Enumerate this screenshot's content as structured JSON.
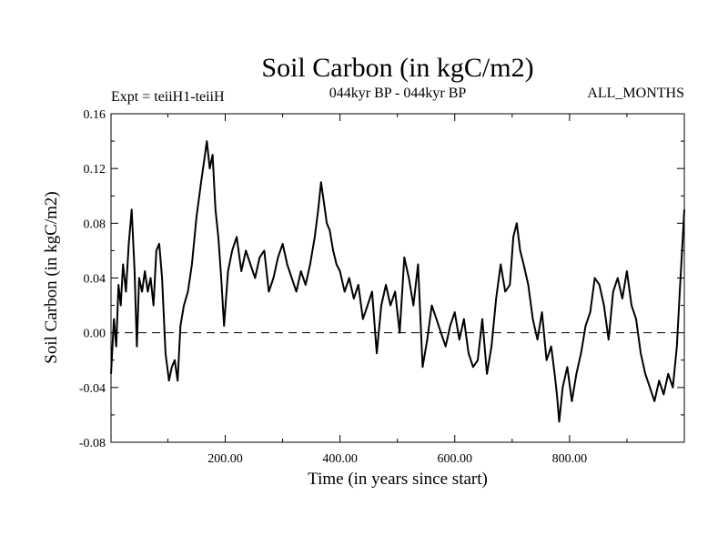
{
  "chart_data": {
    "type": "line",
    "title": "Soil Carbon (in kgC/m2)",
    "subtitle_left": "Expt = teiiH1-teiiH",
    "subtitle_center": "044kyr BP - 044kyr BP",
    "subtitle_right": "ALL_MONTHS",
    "xlabel": "Time (in years since start)",
    "ylabel": "Soil Carbon (in kgC/m2)",
    "xlim": [
      1,
      1000
    ],
    "ylim": [
      -0.08,
      0.16
    ],
    "x_ticks": [
      200,
      400,
      600,
      800
    ],
    "x_tick_labels": [
      "200.00",
      "400.00",
      "600.00",
      "800.00"
    ],
    "y_ticks": [
      -0.08,
      -0.04,
      0.0,
      0.04,
      0.08,
      0.12,
      0.16
    ],
    "y_tick_labels": [
      "-0.08",
      "-0.04",
      "0.00",
      "0.04",
      "0.08",
      "0.12",
      "0.16"
    ],
    "reference_line": {
      "y": 0.0,
      "style": "dashed"
    },
    "grid": false,
    "series": [
      {
        "x": [
          1,
          6,
          10,
          14,
          18,
          22,
          27,
          32,
          37,
          42,
          46,
          50,
          55,
          60,
          65,
          70,
          75,
          80,
          85,
          90,
          96,
          102,
          107,
          112,
          117,
          122,
          128,
          135,
          142,
          150,
          158,
          163,
          168,
          173,
          178,
          183,
          188,
          193,
          198,
          205,
          212,
          220,
          228,
          236,
          244,
          252,
          260,
          268,
          276,
          284,
          292,
          300,
          308,
          316,
          324,
          332,
          340,
          348,
          356,
          362,
          367,
          372,
          377,
          382,
          388,
          394,
          400,
          408,
          416,
          424,
          432,
          440,
          448,
          456,
          464,
          472,
          480,
          488,
          496,
          504,
          512,
          520,
          528,
          536,
          544,
          552,
          560,
          568,
          576,
          584,
          592,
          600,
          608,
          616,
          624,
          632,
          640,
          648,
          656,
          664,
          672,
          680,
          688,
          696,
          702,
          708,
          714,
          720,
          728,
          736,
          744,
          752,
          760,
          768,
          774,
          778,
          782,
          788,
          796,
          804,
          812,
          820,
          828,
          836,
          844,
          852,
          860,
          868,
          876,
          884,
          892,
          900,
          908,
          916,
          924,
          932,
          940,
          948,
          956,
          964,
          972,
          980,
          987,
          992,
          996,
          1000
        ],
        "y": [
          -0.03,
          0.01,
          -0.01,
          0.035,
          0.02,
          0.05,
          0.03,
          0.065,
          0.09,
          0.045,
          -0.01,
          0.04,
          0.03,
          0.045,
          0.03,
          0.04,
          0.02,
          0.06,
          0.065,
          0.04,
          -0.015,
          -0.035,
          -0.025,
          -0.02,
          -0.035,
          0.005,
          0.02,
          0.03,
          0.05,
          0.085,
          0.11,
          0.125,
          0.14,
          0.12,
          0.13,
          0.09,
          0.07,
          0.04,
          0.005,
          0.045,
          0.06,
          0.07,
          0.045,
          0.06,
          0.05,
          0.04,
          0.055,
          0.06,
          0.03,
          0.04,
          0.055,
          0.065,
          0.05,
          0.04,
          0.03,
          0.045,
          0.035,
          0.05,
          0.07,
          0.09,
          0.11,
          0.095,
          0.08,
          0.075,
          0.06,
          0.05,
          0.045,
          0.03,
          0.04,
          0.025,
          0.035,
          0.01,
          0.02,
          0.03,
          -0.015,
          0.02,
          0.035,
          0.02,
          0.03,
          0.0,
          0.055,
          0.04,
          0.02,
          0.05,
          -0.025,
          -0.005,
          0.02,
          0.01,
          0.0,
          -0.01,
          0.005,
          0.015,
          -0.005,
          0.01,
          -0.015,
          -0.025,
          -0.02,
          0.01,
          -0.03,
          -0.01,
          0.025,
          0.05,
          0.03,
          0.035,
          0.07,
          0.08,
          0.06,
          0.05,
          0.035,
          0.01,
          -0.005,
          0.015,
          -0.02,
          -0.01,
          -0.03,
          -0.045,
          -0.065,
          -0.04,
          -0.025,
          -0.05,
          -0.03,
          -0.015,
          0.005,
          0.015,
          0.04,
          0.035,
          0.02,
          -0.005,
          0.03,
          0.04,
          0.025,
          0.045,
          0.02,
          0.01,
          -0.015,
          -0.03,
          -0.04,
          -0.05,
          -0.035,
          -0.045,
          -0.03,
          -0.04,
          -0.01,
          0.03,
          0.06,
          0.09
        ]
      }
    ]
  }
}
